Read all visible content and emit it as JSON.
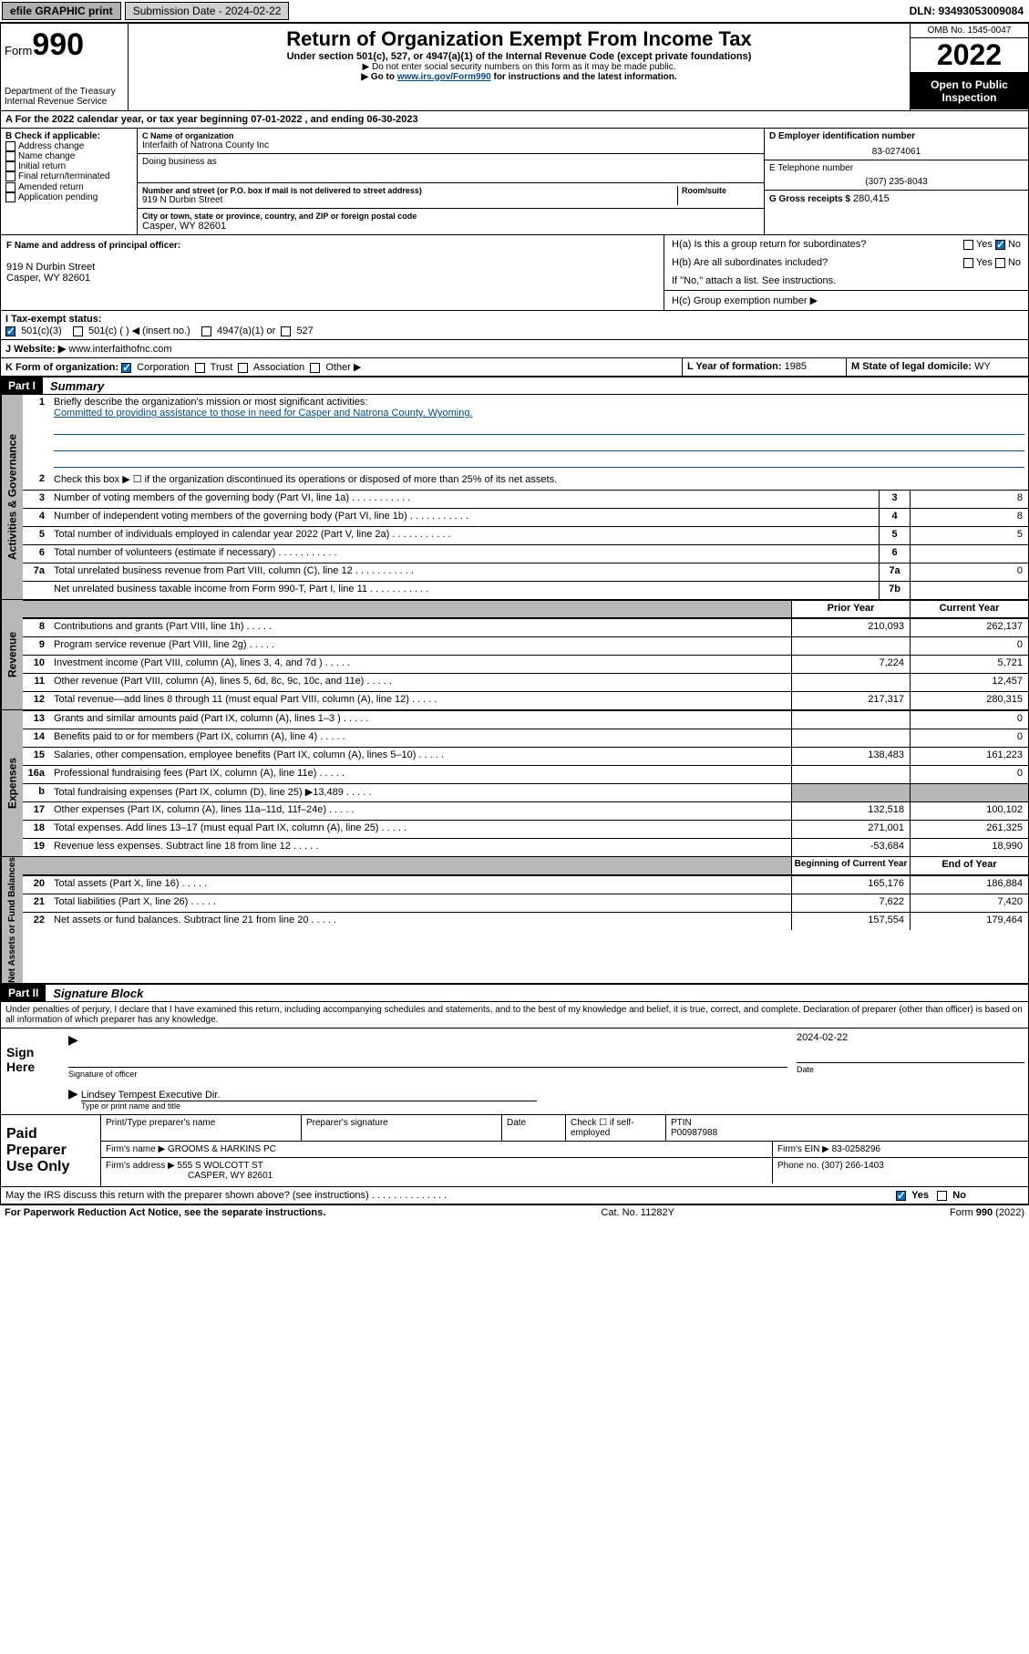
{
  "topbar": {
    "efile": "efile GRAPHIC print",
    "subdate_label": "Submission Date - 2024-02-22",
    "dln": "DLN: 93493053009084"
  },
  "header": {
    "form_label": "Form",
    "form_num": "990",
    "dept": "Department of the Treasury Internal Revenue Service",
    "title": "Return of Organization Exempt From Income Tax",
    "subtitle": "Under section 501(c), 527, or 4947(a)(1) of the Internal Revenue Code (except private foundations)",
    "note1": "▶ Do not enter social security numbers on this form as it may be made public.",
    "note2_pre": "▶ Go to ",
    "note2_link": "www.irs.gov/Form990",
    "note2_post": " for instructions and the latest information.",
    "omb": "OMB No. 1545-0047",
    "year": "2022",
    "open_public": "Open to Public Inspection"
  },
  "period": "A For the 2022 calendar year, or tax year beginning 07-01-2022   , and ending 06-30-2023",
  "B": {
    "label": "B Check if applicable:",
    "opts": [
      "Address change",
      "Name change",
      "Initial return",
      "Final return/terminated",
      "Amended return",
      "Application pending"
    ]
  },
  "C": {
    "name_lbl": "C Name of organization",
    "name": "Interfaith of Natrona County Inc",
    "dba_lbl": "Doing business as",
    "addr_lbl": "Number and street (or P.O. box if mail is not delivered to street address)",
    "room_lbl": "Room/suite",
    "addr": "919 N Durbin Street",
    "city_lbl": "City or town, state or province, country, and ZIP or foreign postal code",
    "city": "Casper, WY  82601"
  },
  "D": {
    "lbl": "D Employer identification number",
    "val": "83-0274061"
  },
  "E": {
    "lbl": "E Telephone number",
    "val": "(307) 235-8043"
  },
  "G": {
    "lbl": "G Gross receipts $",
    "val": "280,415"
  },
  "F": {
    "lbl": "F  Name and address of principal officer:",
    "addr1": "919 N Durbin Street",
    "addr2": "Casper, WY  82601"
  },
  "H": {
    "a": "H(a)  Is this a group return for subordinates?",
    "b": "H(b)  Are all subordinates included?",
    "b_note": "If \"No,\" attach a list. See instructions.",
    "c": "H(c)  Group exemption number ▶"
  },
  "I": {
    "lbl": "I      Tax-exempt status:",
    "opts": [
      "501(c)(3)",
      "501(c) (  ) ◀ (insert no.)",
      "4947(a)(1) or",
      "527"
    ]
  },
  "J": {
    "lbl": "J     Website: ▶",
    "val": "www.interfaithofnc.com"
  },
  "K": {
    "lbl": "K Form of organization:",
    "opts": [
      "Corporation",
      "Trust",
      "Association",
      "Other ▶"
    ]
  },
  "L": {
    "lbl": "L Year of formation:",
    "val": "1985"
  },
  "M": {
    "lbl": "M State of legal domicile:",
    "val": "WY"
  },
  "part1": {
    "hdr": "Part I",
    "title": "Summary",
    "line1_lbl": "Briefly describe the organization's mission or most significant activities:",
    "mission": "Committed to providing assistance to those in need for Casper and Natrona County, Wyoming.",
    "line2": "Check this box ▶ ☐  if the organization discontinued its operations or disposed of more than 25% of its net assets.",
    "lines_gov": [
      {
        "n": "3",
        "t": "Number of voting members of the governing body (Part VI, line 1a)",
        "box": "3",
        "v": "8"
      },
      {
        "n": "4",
        "t": "Number of independent voting members of the governing body (Part VI, line 1b)",
        "box": "4",
        "v": "8"
      },
      {
        "n": "5",
        "t": "Total number of individuals employed in calendar year 2022 (Part V, line 2a)",
        "box": "5",
        "v": "5"
      },
      {
        "n": "6",
        "t": "Total number of volunteers (estimate if necessary)",
        "box": "6",
        "v": ""
      },
      {
        "n": "7a",
        "t": "Total unrelated business revenue from Part VIII, column (C), line 12",
        "box": "7a",
        "v": "0"
      },
      {
        "n": "",
        "t": "Net unrelated business taxable income from Form 990-T, Part I, line 11",
        "box": "7b",
        "v": ""
      }
    ],
    "col_prior": "Prior Year",
    "col_current": "Current Year",
    "lines_rev": [
      {
        "n": "8",
        "t": "Contributions and grants (Part VIII, line 1h)",
        "p": "210,093",
        "c": "262,137"
      },
      {
        "n": "9",
        "t": "Program service revenue (Part VIII, line 2g)",
        "p": "",
        "c": "0"
      },
      {
        "n": "10",
        "t": "Investment income (Part VIII, column (A), lines 3, 4, and 7d )",
        "p": "7,224",
        "c": "5,721"
      },
      {
        "n": "11",
        "t": "Other revenue (Part VIII, column (A), lines 5, 6d, 8c, 9c, 10c, and 11e)",
        "p": "",
        "c": "12,457"
      },
      {
        "n": "12",
        "t": "Total revenue—add lines 8 through 11 (must equal Part VIII, column (A), line 12)",
        "p": "217,317",
        "c": "280,315"
      }
    ],
    "lines_exp": [
      {
        "n": "13",
        "t": "Grants and similar amounts paid (Part IX, column (A), lines 1–3 )",
        "p": "",
        "c": "0"
      },
      {
        "n": "14",
        "t": "Benefits paid to or for members (Part IX, column (A), line 4)",
        "p": "",
        "c": "0"
      },
      {
        "n": "15",
        "t": "Salaries, other compensation, employee benefits (Part IX, column (A), lines 5–10)",
        "p": "138,483",
        "c": "161,223"
      },
      {
        "n": "16a",
        "t": "Professional fundraising fees (Part IX, column (A), line 11e)",
        "p": "",
        "c": "0"
      },
      {
        "n": "b",
        "t": "Total fundraising expenses (Part IX, column (D), line 25) ▶13,489",
        "p": "SHADE",
        "c": "SHADE"
      },
      {
        "n": "17",
        "t": "Other expenses (Part IX, column (A), lines 11a–11d, 11f–24e)",
        "p": "132,518",
        "c": "100,102"
      },
      {
        "n": "18",
        "t": "Total expenses. Add lines 13–17 (must equal Part IX, column (A), line 25)",
        "p": "271,001",
        "c": "261,325"
      },
      {
        "n": "19",
        "t": "Revenue less expenses. Subtract line 18 from line 12",
        "p": "-53,684",
        "c": "18,990"
      }
    ],
    "col_begin": "Beginning of Current Year",
    "col_end": "End of Year",
    "lines_net": [
      {
        "n": "20",
        "t": "Total assets (Part X, line 16)",
        "p": "165,176",
        "c": "186,884"
      },
      {
        "n": "21",
        "t": "Total liabilities (Part X, line 26)",
        "p": "7,622",
        "c": "7,420"
      },
      {
        "n": "22",
        "t": "Net assets or fund balances. Subtract line 21 from line 20",
        "p": "157,554",
        "c": "179,464"
      }
    ]
  },
  "vtabs": {
    "gov": "Activities & Governance",
    "rev": "Revenue",
    "exp": "Expenses",
    "net": "Net Assets or Fund Balances"
  },
  "part2": {
    "hdr": "Part II",
    "title": "Signature Block",
    "decl": "Under penalties of perjury, I declare that I have examined this return, including accompanying schedules and statements, and to the best of my knowledge and belief, it is true, correct, and complete. Declaration of preparer (other than officer) is based on all information of which preparer has any knowledge."
  },
  "sign": {
    "lbl": "Sign Here",
    "sig_lbl": "Signature of officer",
    "date_lbl": "Date",
    "date": "2024-02-22",
    "name": "Lindsey Tempest  Executive Dir.",
    "name_lbl": "Type or print name and title"
  },
  "prep": {
    "lbl": "Paid Preparer Use Only",
    "h1": "Print/Type preparer's name",
    "h2": "Preparer's signature",
    "h3": "Date",
    "h4_chk": "Check ☐ if self-employed",
    "h5": "PTIN",
    "ptin": "P00987988",
    "firm_name_lbl": "Firm's name      ▶",
    "firm_name": "GROOMS & HARKINS PC",
    "firm_ein_lbl": "Firm's EIN ▶",
    "firm_ein": "83-0258296",
    "firm_addr_lbl": "Firm's address ▶",
    "firm_addr": "555 S WOLCOTT ST",
    "firm_city": "CASPER, WY  82601",
    "phone_lbl": "Phone no.",
    "phone": "(307) 266-1403"
  },
  "discuss": "May the IRS discuss this return with the preparer shown above? (see instructions)",
  "footer": {
    "left": "For Paperwork Reduction Act Notice, see the separate instructions.",
    "mid": "Cat. No. 11282Y",
    "right_pre": "Form ",
    "right_num": "990",
    "right_post": " (2022)"
  },
  "yes": "Yes",
  "no": "No"
}
